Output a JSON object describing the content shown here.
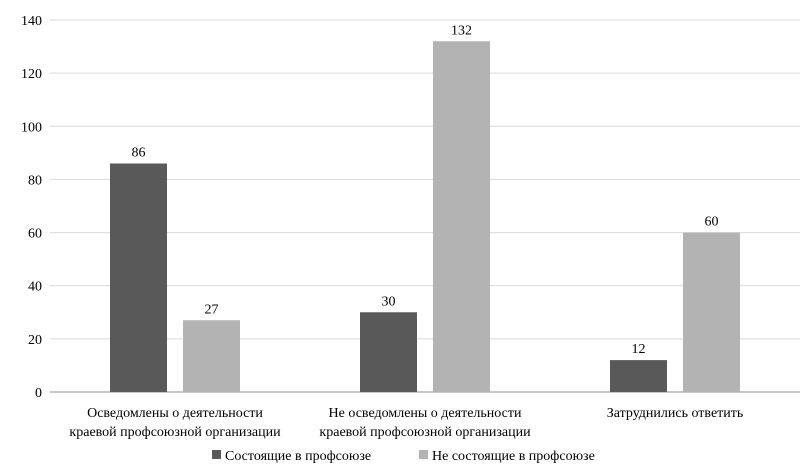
{
  "chart_data": {
    "type": "bar",
    "categories": [
      [
        "Осведомлены о деятельности",
        "краевой профсоюзной организации"
      ],
      [
        "Не осведомлены о деятельности",
        "краевой профсоюзной организации"
      ],
      [
        "Затруднились ответить"
      ]
    ],
    "series": [
      {
        "name": "Состоящие в профсоюзе",
        "values": [
          86,
          30,
          12
        ],
        "color": "#595959"
      },
      {
        "name": "Не состоящие в профсоюзе",
        "values": [
          27,
          132,
          60
        ],
        "color": "#b3b3b3"
      }
    ],
    "ylim": [
      0,
      140
    ],
    "yticks": [
      0,
      20,
      40,
      60,
      80,
      100,
      120,
      140
    ],
    "grid": true,
    "legend": "bottom-center",
    "data_labels": true
  }
}
